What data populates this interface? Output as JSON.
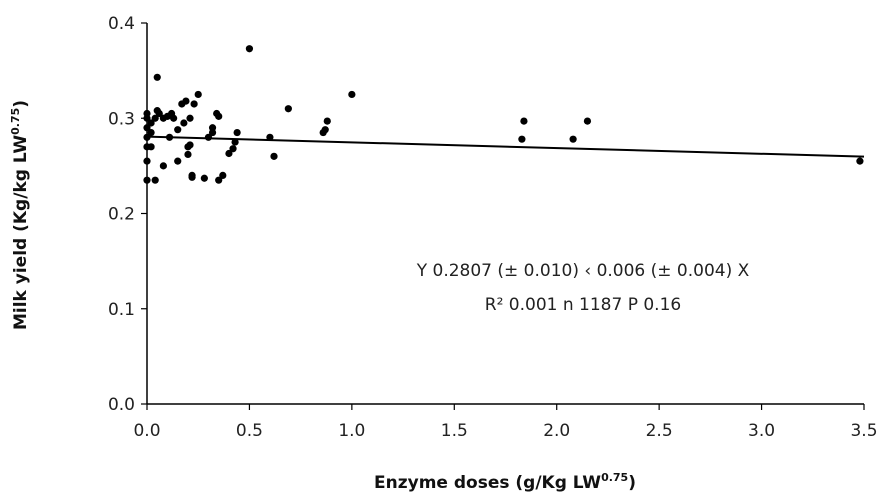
{
  "chart_data": {
    "type": "scatter",
    "xlabel": "Enzyme doses (g/Kg LW",
    "xlabel_sup": "0.75",
    "xlabel_end": ")",
    "ylabel": "Milk yield (Kg/kg LW",
    "ylabel_sup": "0.75",
    "ylabel_end": ")",
    "xlim": [
      0,
      3.5
    ],
    "ylim": [
      0,
      0.4
    ],
    "x_ticks": [
      "0.0",
      "0.5",
      "1.0",
      "1.5",
      "2.0",
      "2.5",
      "3.0",
      "3.5"
    ],
    "y_ticks": [
      "0.0",
      "0.1",
      "0.2",
      "0.3",
      "0.4"
    ],
    "grid": false,
    "trendline": {
      "intercept": 0.2807,
      "slope": -0.006,
      "x_range": [
        0,
        3.5
      ]
    },
    "annotation_line1": "Y 0.2807 (± 0.010) ‹ 0.006 (± 0.004) X",
    "annotation_line2": "R² 0.001 n 1187 P 0.16",
    "points": [
      [
        0.0,
        0.235
      ],
      [
        0.0,
        0.255
      ],
      [
        0.0,
        0.27
      ],
      [
        0.0,
        0.28
      ],
      [
        0.0,
        0.29
      ],
      [
        0.0,
        0.3
      ],
      [
        0.0,
        0.305
      ],
      [
        0.02,
        0.27
      ],
      [
        0.02,
        0.285
      ],
      [
        0.02,
        0.295
      ],
      [
        0.04,
        0.235
      ],
      [
        0.04,
        0.3
      ],
      [
        0.05,
        0.343
      ],
      [
        0.05,
        0.308
      ],
      [
        0.06,
        0.305
      ],
      [
        0.08,
        0.25
      ],
      [
        0.08,
        0.3
      ],
      [
        0.1,
        0.302
      ],
      [
        0.11,
        0.28
      ],
      [
        0.12,
        0.305
      ],
      [
        0.13,
        0.3
      ],
      [
        0.15,
        0.255
      ],
      [
        0.15,
        0.288
      ],
      [
        0.17,
        0.315
      ],
      [
        0.18,
        0.295
      ],
      [
        0.19,
        0.318
      ],
      [
        0.2,
        0.27
      ],
      [
        0.2,
        0.262
      ],
      [
        0.21,
        0.272
      ],
      [
        0.21,
        0.3
      ],
      [
        0.22,
        0.24
      ],
      [
        0.22,
        0.238
      ],
      [
        0.23,
        0.315
      ],
      [
        0.25,
        0.325
      ],
      [
        0.28,
        0.237
      ],
      [
        0.3,
        0.28
      ],
      [
        0.32,
        0.285
      ],
      [
        0.32,
        0.29
      ],
      [
        0.34,
        0.305
      ],
      [
        0.35,
        0.302
      ],
      [
        0.35,
        0.235
      ],
      [
        0.37,
        0.24
      ],
      [
        0.4,
        0.263
      ],
      [
        0.42,
        0.268
      ],
      [
        0.43,
        0.275
      ],
      [
        0.44,
        0.285
      ],
      [
        0.5,
        0.373
      ],
      [
        0.6,
        0.28
      ],
      [
        0.62,
        0.26
      ],
      [
        0.69,
        0.31
      ],
      [
        0.86,
        0.285
      ],
      [
        0.87,
        0.288
      ],
      [
        0.88,
        0.297
      ],
      [
        1.0,
        0.325
      ],
      [
        1.83,
        0.278
      ],
      [
        1.84,
        0.297
      ],
      [
        2.08,
        0.278
      ],
      [
        2.15,
        0.297
      ],
      [
        3.48,
        0.255
      ]
    ]
  }
}
